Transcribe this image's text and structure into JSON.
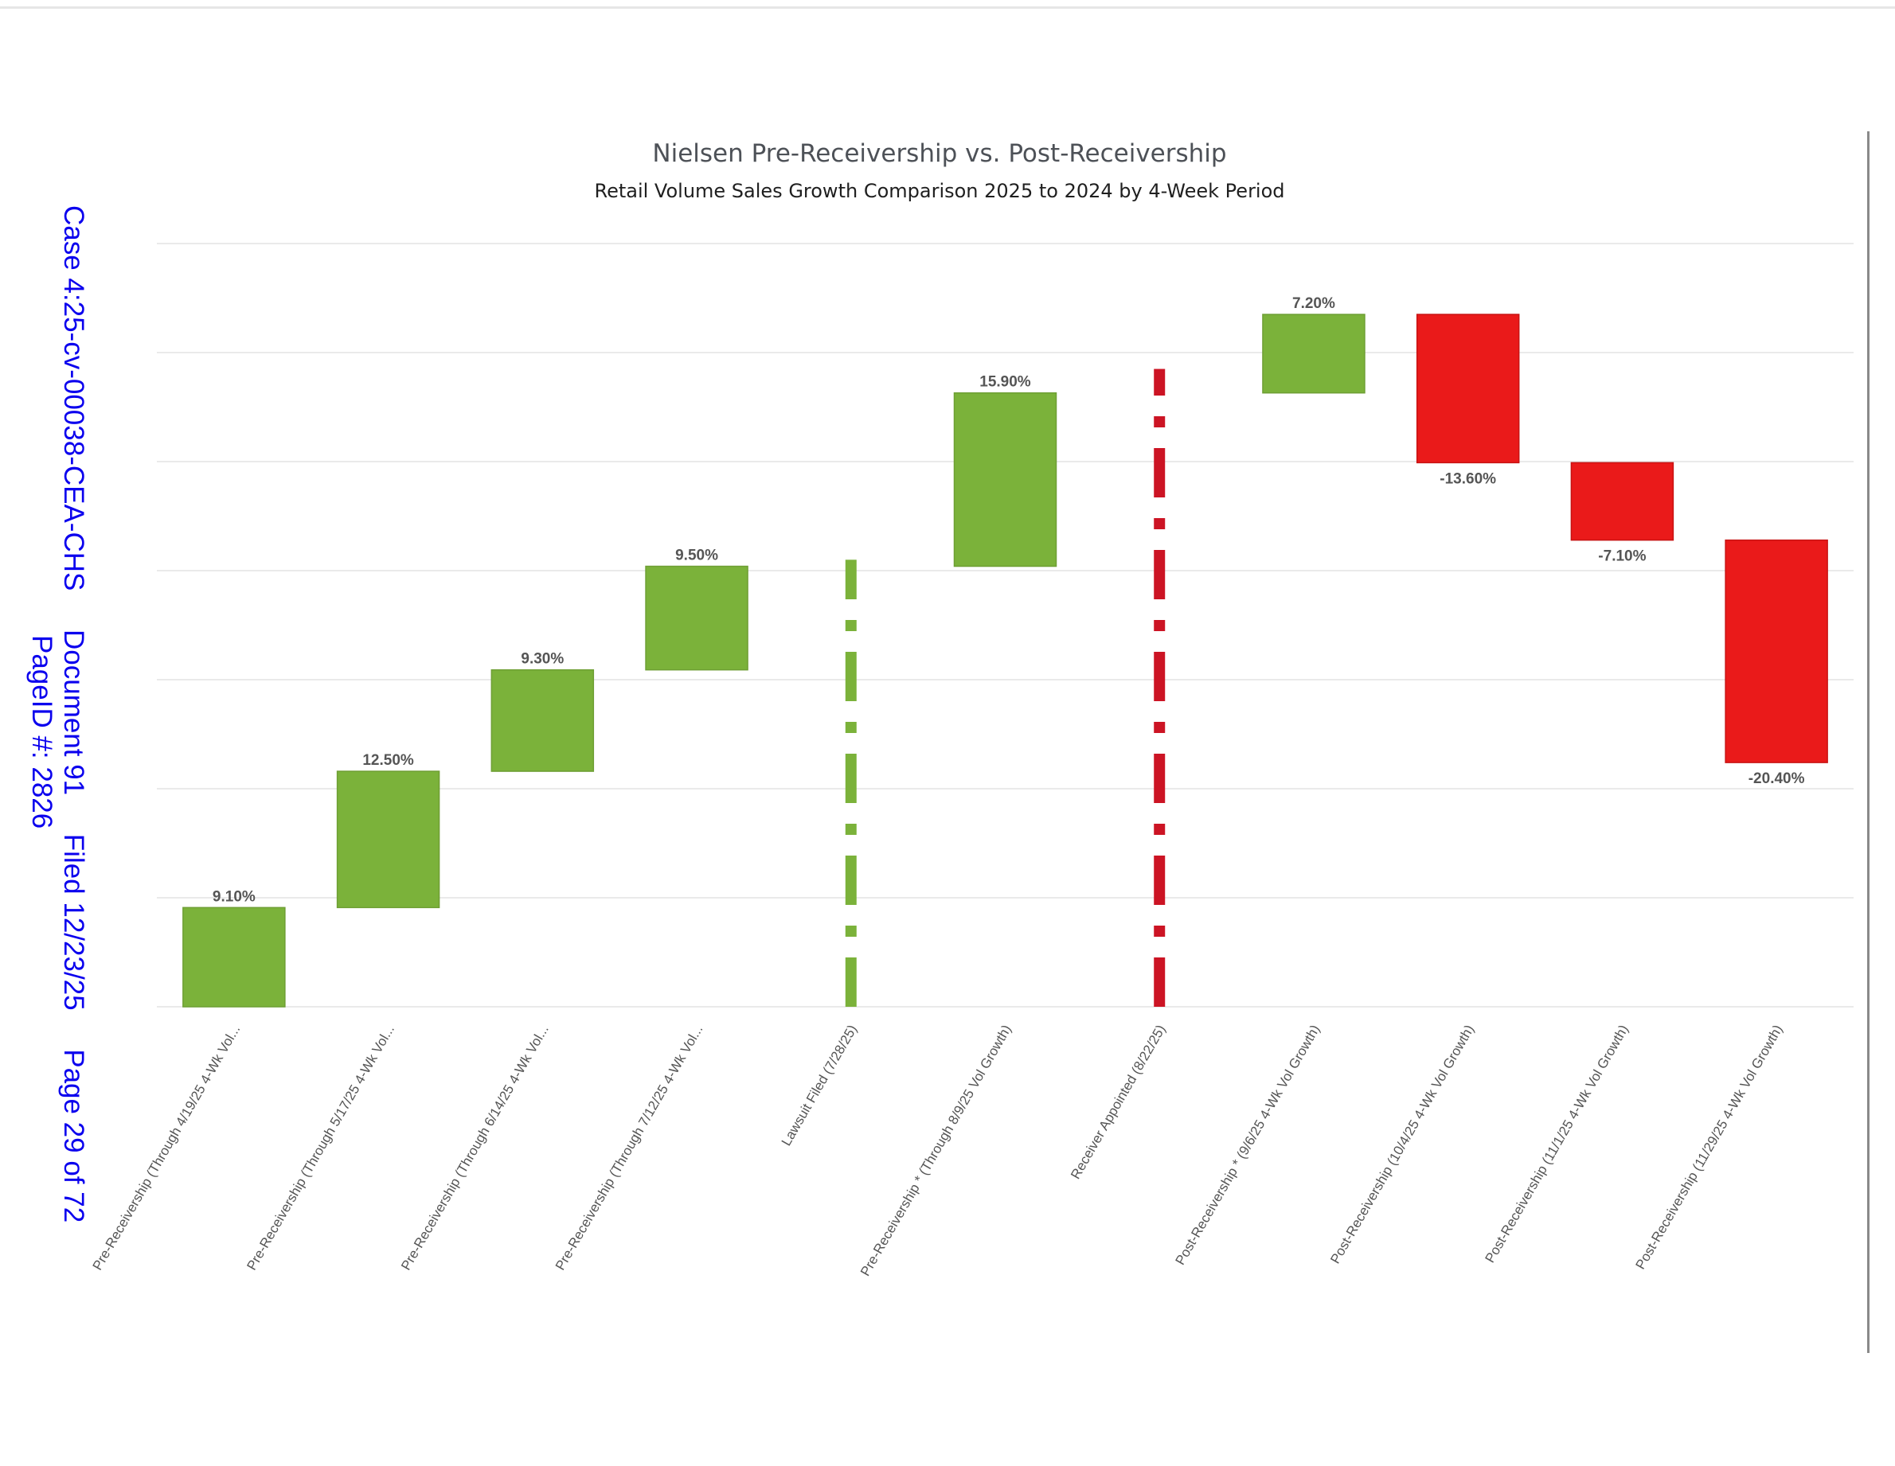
{
  "stamp": {
    "line1": "Case 4:25-cv-00038-CEA-CHS     Document 91     Filed 12/23/25     Page 29 of 72",
    "line2": "PageID #: 2826"
  },
  "chart_data": {
    "type": "waterfall",
    "title": "Nielsen Pre-Receivership vs. Post-Receivership",
    "subtitle": "Retail Volume Sales Growth Comparison 2025 to 2024 by 4-Week Period",
    "xlabel": "",
    "ylabel": "",
    "grid": true,
    "colors": {
      "increase": "#7bb23a",
      "decrease": "#ea1a1a",
      "lawsuit_marker": "#7bb23a",
      "receiver_marker": "#cc1424",
      "gridline": "#e3e3e3"
    },
    "categories": [
      "Pre-Receivership (Through 4/19/25 4-Wk Vol...",
      "Pre-Receivership (Through 5/17/25 4-Wk Vol...",
      "Pre-Receivership (Through 6/14/25 4-Wk Vol...",
      "Pre-Receivership (Through 7/12/25 4-Wk Vol...",
      "Lawsuit Filed (7/28/25)",
      "Pre-Receivership * (Through 8/9/25 Vol Growth)",
      "Receiver Appointed (8/22/25)",
      "Post-Receivership * (9/6/25 4-Wk Vol Growth)",
      "Post-Receivership (10/4/25 4-Wk Vol Growth)",
      "Post-Receivership (11/1/25 4-Wk Vol Growth)",
      "Post-Receivership (11/29/25 4-Wk Vol Growth)"
    ],
    "values": [
      9.1,
      12.5,
      9.3,
      9.5,
      null,
      15.9,
      null,
      7.2,
      -13.6,
      -7.1,
      -20.4
    ],
    "kinds": [
      "bar",
      "bar",
      "bar",
      "bar",
      "marker",
      "bar",
      "marker",
      "bar",
      "bar",
      "bar",
      "bar"
    ],
    "data_labels": [
      "9.10%",
      "12.50%",
      "9.30%",
      "9.50%",
      "",
      "15.90%",
      "",
      "7.20%",
      "-13.60%",
      "-7.10%",
      "-20.40%"
    ],
    "ylim": [
      0,
      70
    ]
  }
}
